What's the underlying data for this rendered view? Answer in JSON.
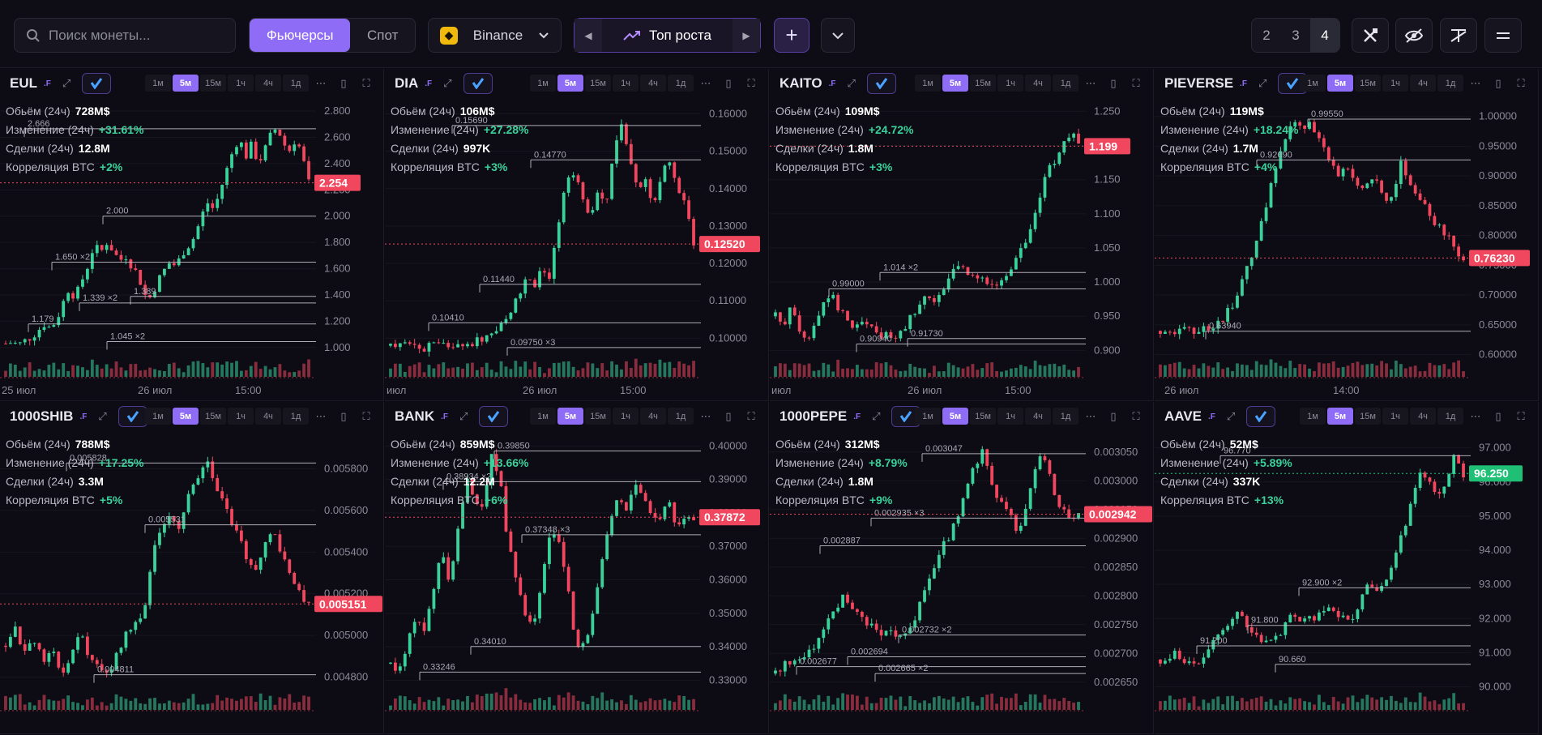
{
  "toolbar": {
    "search_placeholder": "Поиск монеты...",
    "market_futures": "Фьючерсы",
    "market_spot": "Спот",
    "exchange": "Binance",
    "preset": "Топ роста",
    "grid_options": [
      "2",
      "3",
      "4"
    ],
    "grid_active": "4"
  },
  "labels": {
    "volume": "Обьём (24ч)",
    "change": "Изменение (24ч)",
    "trades": "Сделки (24ч)",
    "corr": "Корреляция BTC",
    "futures_tag": ".F"
  },
  "timeframes": [
    "1м",
    "5м",
    "15м",
    "1ч",
    "4ч",
    "1д"
  ],
  "active_timeframe": "5м",
  "colors": {
    "up": "#3ad29a",
    "down": "#f0475e",
    "accent": "#8f6cf5",
    "price_tag_down": "#f0475e",
    "price_tag_up": "#1fbf76"
  },
  "panels": [
    {
      "symbol": "EUL",
      "stats": {
        "volume": "728M$",
        "change": "+31.61%",
        "trades": "12.8M",
        "corr": "+2%"
      },
      "price": 2.254,
      "price_label": "2.254",
      "price_dir": "down",
      "y_ticks": [
        "2.800",
        "2.600",
        "2.400",
        "2.200",
        "2.000",
        "1.800",
        "1.600",
        "1.400",
        "1.200",
        "1.000"
      ],
      "ylim": [
        0.9,
        2.85
      ],
      "x_labels": [
        "25 июл",
        "26 июл",
        "15:00"
      ],
      "levels": [
        {
          "value": 2.666,
          "label": "2.666"
        },
        {
          "value": 2.0,
          "label": "2.000"
        },
        {
          "value": 1.65,
          "label": "1.650 ×2"
        },
        {
          "value": 1.389,
          "label": "1.389"
        },
        {
          "value": 1.339,
          "label": "1.339 ×2"
        },
        {
          "value": 1.179,
          "label": "1.179"
        },
        {
          "value": 1.045,
          "label": "1.045 ×2"
        }
      ],
      "path": [
        1.03,
        1.04,
        1.02,
        1.05,
        1.08,
        1.12,
        1.18,
        1.15,
        1.2,
        1.33,
        1.45,
        1.38,
        1.5,
        1.62,
        1.78,
        1.72,
        1.8,
        1.74,
        1.66,
        1.7,
        1.62,
        1.55,
        1.4,
        1.38,
        1.5,
        1.58,
        1.65,
        1.62,
        1.72,
        1.78,
        1.85,
        2.0,
        2.1,
        2.05,
        2.2,
        2.35,
        2.5,
        2.6,
        2.45,
        2.55,
        2.4,
        2.5,
        2.62,
        2.68,
        2.55,
        2.5,
        2.6,
        2.45,
        2.254
      ]
    },
    {
      "symbol": "DIA",
      "stats": {
        "volume": "106M$",
        "change": "+27.28%",
        "trades": "997K",
        "corr": "+3%"
      },
      "price": 0.1252,
      "price_label": "0.12520",
      "price_dir": "down",
      "y_ticks": [
        "0.16000",
        "0.15000",
        "0.14000",
        "0.13000",
        "0.12000",
        "0.11000",
        "0.10000"
      ],
      "ylim": [
        0.094,
        0.1625
      ],
      "x_labels": [
        "июл",
        "26 июл",
        "15:00"
      ],
      "levels": [
        {
          "value": 0.1569,
          "label": "0.15690"
        },
        {
          "value": 0.1477,
          "label": "0.14770"
        },
        {
          "value": 0.1144,
          "label": "0.11440"
        },
        {
          "value": 0.1041,
          "label": "0.10410"
        },
        {
          "value": 0.0975,
          "label": "0.09750 ×3"
        }
      ],
      "path": [
        0.098,
        0.0978,
        0.0982,
        0.0976,
        0.0975,
        0.0979,
        0.0977,
        0.098,
        0.0985,
        0.099,
        0.0988,
        0.0995,
        0.1005,
        0.102,
        0.104,
        0.107,
        0.111,
        0.115,
        0.114,
        0.118,
        0.116,
        0.13,
        0.142,
        0.145,
        0.138,
        0.133,
        0.14,
        0.135,
        0.15,
        0.1569,
        0.148,
        0.14,
        0.143,
        0.135,
        0.145,
        0.1477,
        0.14,
        0.135,
        0.1252
      ]
    },
    {
      "symbol": "KAITO",
      "stats": {
        "volume": "109M$",
        "change": "+24.72%",
        "trades": "1.8M",
        "corr": "+3%"
      },
      "price": 1.199,
      "price_label": "1.199",
      "price_dir": "down",
      "y_ticks": [
        "1.250",
        "1.200",
        "1.150",
        "1.100",
        "1.050",
        "1.000",
        "0.950",
        "0.900"
      ],
      "ylim": [
        0.885,
        1.26
      ],
      "x_labels": [
        "июл",
        "26 июл",
        "15:00"
      ],
      "levels": [
        {
          "value": 1.014,
          "label": "1.014 ×2"
        },
        {
          "value": 0.99,
          "label": "0.99000"
        },
        {
          "value": 0.9173,
          "label": "0.91730"
        },
        {
          "value": 0.9094,
          "label": "0.90940"
        }
      ],
      "path": [
        0.95,
        0.94,
        0.96,
        0.93,
        0.91,
        0.94,
        0.97,
        0.98,
        0.96,
        0.95,
        0.93,
        0.945,
        0.935,
        0.92,
        0.925,
        0.917,
        0.93,
        0.95,
        0.96,
        0.98,
        0.975,
        0.99,
        1.01,
        1.02,
        1.015,
        1.005,
        1.0,
        0.995,
        0.99,
        1.01,
        1.03,
        1.05,
        1.08,
        1.12,
        1.16,
        1.18,
        1.2,
        1.22,
        1.199
      ]
    },
    {
      "symbol": "PIEVERSE",
      "stats": {
        "volume": "119M$",
        "change": "+18.24%",
        "trades": "1.7M",
        "corr": "+4%"
      },
      "price": 0.7623,
      "price_label": "0.76230",
      "price_dir": "down",
      "y_ticks": [
        "1.00000",
        "0.95000",
        "0.90000",
        "0.85000",
        "0.80000",
        "0.75000",
        "0.70000",
        "0.65000",
        "0.60000"
      ],
      "ylim": [
        0.59,
        1.02
      ],
      "x_labels": [
        "26 июл",
        "14:00"
      ],
      "levels": [
        {
          "value": 0.9955,
          "label": "0.99550"
        },
        {
          "value": 0.9269,
          "label": "0.92690"
        },
        {
          "value": 0.6394,
          "label": "0.63940"
        }
      ],
      "path": [
        0.64,
        0.642,
        0.638,
        0.641,
        0.639,
        0.645,
        0.65,
        0.66,
        0.68,
        0.72,
        0.75,
        0.8,
        0.86,
        0.92,
        0.96,
        0.99,
        0.975,
        0.99,
        0.95,
        0.93,
        0.9,
        0.92,
        0.89,
        0.88,
        0.9,
        0.86,
        0.87,
        0.92,
        0.89,
        0.86,
        0.84,
        0.82,
        0.8,
        0.78,
        0.7623
      ]
    },
    {
      "symbol": "1000SHIB",
      "stats": {
        "volume": "788M$",
        "change": "+17.25%",
        "trades": "3.3M",
        "corr": "+5%"
      },
      "price": 0.005151,
      "price_label": "0.005151",
      "price_dir": "down",
      "y_ticks": [
        "0.005800",
        "0.005600",
        "0.005400",
        "0.005200",
        "0.005000",
        "0.004800"
      ],
      "ylim": [
        0.00472,
        0.00595
      ],
      "x_labels": [],
      "levels": [
        {
          "value": 0.005828,
          "label": "0.005828"
        },
        {
          "value": 0.005531,
          "label": "0.005531"
        },
        {
          "value": 0.004811,
          "label": "0.004811"
        }
      ],
      "path": [
        0.00495,
        0.00505,
        0.0049,
        0.005,
        0.00488,
        0.00495,
        0.0048,
        0.0049,
        0.00502,
        0.0049,
        0.00485,
        0.0048,
        0.0049,
        0.005,
        0.00505,
        0.0051,
        0.0054,
        0.0055,
        0.0056,
        0.0055,
        0.0057,
        0.00578,
        0.00582,
        0.0057,
        0.0056,
        0.0055,
        0.0054,
        0.0053,
        0.0054,
        0.0055,
        0.0054,
        0.0053,
        0.0052,
        0.005151
      ]
    },
    {
      "symbol": "BANK",
      "stats": {
        "volume": "859M$",
        "change": "+13.66%",
        "trades": "12.2M",
        "corr": "+6%"
      },
      "price": 0.37872,
      "price_label": "0.37872",
      "price_dir": "down",
      "y_ticks": [
        "0.40000",
        "0.39000",
        "0.38000",
        "0.37000",
        "0.36000",
        "0.35000",
        "0.34000",
        "0.33000"
      ],
      "ylim": [
        0.326,
        0.4025
      ],
      "x_labels": [],
      "levels": [
        {
          "value": 0.3985,
          "label": "0.39850"
        },
        {
          "value": 0.38934,
          "label": "0.38934 ×2"
        },
        {
          "value": 0.37348,
          "label": "0.37348 ×3"
        },
        {
          "value": 0.3401,
          "label": "0.34010"
        },
        {
          "value": 0.33246,
          "label": "0.33246"
        }
      ],
      "path": [
        0.335,
        0.3325,
        0.34,
        0.35,
        0.345,
        0.355,
        0.37,
        0.36,
        0.375,
        0.39,
        0.385,
        0.38,
        0.3985,
        0.39,
        0.37,
        0.36,
        0.35,
        0.345,
        0.36,
        0.375,
        0.37,
        0.36,
        0.34,
        0.3401,
        0.35,
        0.365,
        0.375,
        0.385,
        0.38,
        0.39,
        0.385,
        0.38,
        0.378,
        0.385,
        0.375,
        0.38,
        0.37872
      ]
    },
    {
      "symbol": "1000PEPE",
      "stats": {
        "volume": "312M$",
        "change": "+8.79%",
        "trades": "1.8M",
        "corr": "+9%"
      },
      "price": 0.002942,
      "price_label": "0.002942",
      "price_dir": "down",
      "y_ticks": [
        "0.003050",
        "0.003000",
        "0.002950",
        "0.002900",
        "0.002850",
        "0.002800",
        "0.002750",
        "0.002700",
        "0.002650"
      ],
      "ylim": [
        0.00263,
        0.003075
      ],
      "x_labels": [],
      "levels": [
        {
          "value": 0.003047,
          "label": "0.003047"
        },
        {
          "value": 0.002935,
          "label": "0.002935 ×3"
        },
        {
          "value": 0.002887,
          "label": "0.002887"
        },
        {
          "value": 0.002732,
          "label": "0.002732 ×2"
        },
        {
          "value": 0.002694,
          "label": "0.002694"
        },
        {
          "value": 0.002677,
          "label": "0.002677"
        },
        {
          "value": 0.002665,
          "label": "0.002665 ×2"
        }
      ],
      "path": [
        0.002665,
        0.00268,
        0.002677,
        0.00269,
        0.0027,
        0.00272,
        0.00275,
        0.00278,
        0.0028,
        0.00277,
        0.00276,
        0.00275,
        0.00274,
        0.002732,
        0.002735,
        0.00274,
        0.00276,
        0.0028,
        0.00284,
        0.00288,
        0.0029,
        0.00294,
        0.00298,
        0.00303,
        0.00305,
        0.003,
        0.00296,
        0.00295,
        0.0029,
        0.00296,
        0.00302,
        0.003047,
        0.00299,
        0.00295,
        0.002935,
        0.002942
      ]
    },
    {
      "symbol": "AAVE",
      "stats": {
        "volume": "52M$",
        "change": "+5.89%",
        "trades": "337K",
        "corr": "+13%"
      },
      "price": 96.25,
      "price_label": "96.250",
      "price_dir": "up",
      "y_ticks": [
        "97.000",
        "96.000",
        "95.000",
        "94.000",
        "93.000",
        "92.000",
        "91.000",
        "90.000"
      ],
      "ylim": [
        89.8,
        97.3
      ],
      "x_labels": [],
      "levels": [
        {
          "value": 96.77,
          "label": "96.770"
        },
        {
          "value": 92.9,
          "label": "92.900 ×2"
        },
        {
          "value": 91.8,
          "label": "91.800"
        },
        {
          "value": 91.2,
          "label": "91.200"
        },
        {
          "value": 90.66,
          "label": "90.660"
        }
      ],
      "path": [
        90.8,
        90.9,
        91.0,
        90.7,
        90.66,
        90.9,
        91.3,
        91.7,
        91.9,
        92.2,
        91.8,
        91.5,
        91.2,
        91.3,
        91.6,
        92.0,
        91.9,
        92.1,
        92.0,
        92.2,
        92.3,
        92.0,
        91.8,
        92.5,
        93.0,
        92.9,
        93.2,
        93.8,
        94.5,
        95.5,
        96.2,
        96.0,
        95.4,
        96.1,
        96.8,
        96.25
      ]
    }
  ]
}
